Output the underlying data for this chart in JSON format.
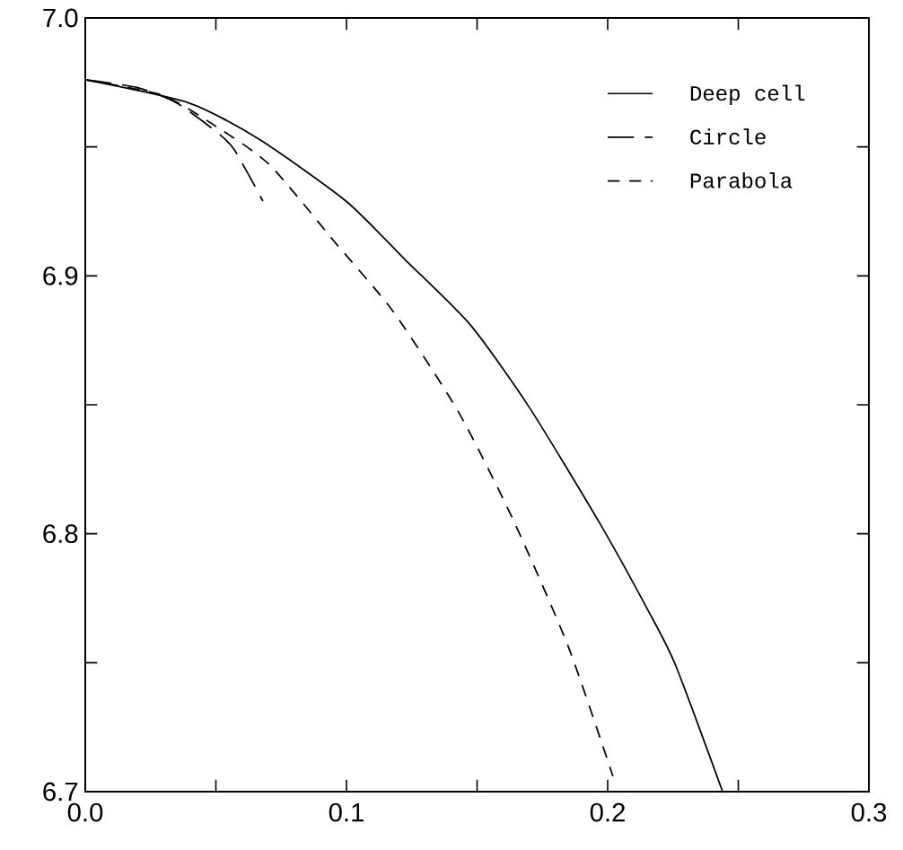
{
  "chart_data": {
    "type": "line",
    "series": [
      {
        "name": "Deep cell",
        "color": "#000000",
        "line_style": "solid",
        "x": [
          0,
          0.0398,
          0.0665,
          0.0998,
          0.1227,
          0.1474,
          0.17,
          0.197,
          0.2156,
          0.226,
          0.244
        ],
        "values": [
          6.976,
          6.967,
          6.953,
          6.929,
          6.906,
          6.881,
          6.849,
          6.804,
          6.77,
          6.749,
          6.7
        ]
      },
      {
        "name": "Circle",
        "color": "#000000",
        "line_style": "dashed",
        "x": [
          0,
          0.02,
          0.035,
          0.05,
          0.057,
          0.068
        ],
        "values": [
          6.976,
          6.973,
          6.967,
          6.956,
          6.949,
          6.929
        ]
      },
      {
        "name": "Parabola",
        "color": "#000000",
        "line_style": "dashed",
        "x": [
          0,
          0.0295,
          0.05,
          0.0706,
          0.0956,
          0.118,
          0.143,
          0.164,
          0.185,
          0.202
        ],
        "values": [
          6.976,
          6.97,
          6.958,
          6.943,
          6.913,
          6.886,
          6.847,
          6.805,
          6.756,
          6.706
        ]
      }
    ],
    "xlim": [
      0,
      0.3
    ],
    "ylim": [
      6.7,
      7.0
    ],
    "xticks": [
      {
        "value": 0,
        "label": "0.0"
      },
      {
        "value": 0.05,
        "label": null
      },
      {
        "value": 0.1,
        "label": "0.1"
      },
      {
        "value": 0.15,
        "label": null
      },
      {
        "value": 0.2,
        "label": "0.2"
      },
      {
        "value": 0.25,
        "label": null
      },
      {
        "value": 0.3,
        "label": "0.3"
      }
    ],
    "yticks": [
      {
        "value": 6.7,
        "label": "6.7"
      },
      {
        "value": 6.75,
        "label": null
      },
      {
        "value": 6.8,
        "label": "6.8"
      },
      {
        "value": 6.85,
        "label": null
      },
      {
        "value": 6.9,
        "label": "6.9"
      },
      {
        "value": 6.95,
        "label": null
      },
      {
        "value": 7.0,
        "label": "7.0"
      }
    ],
    "grid": false,
    "legend": "top right",
    "marker": "none"
  }
}
